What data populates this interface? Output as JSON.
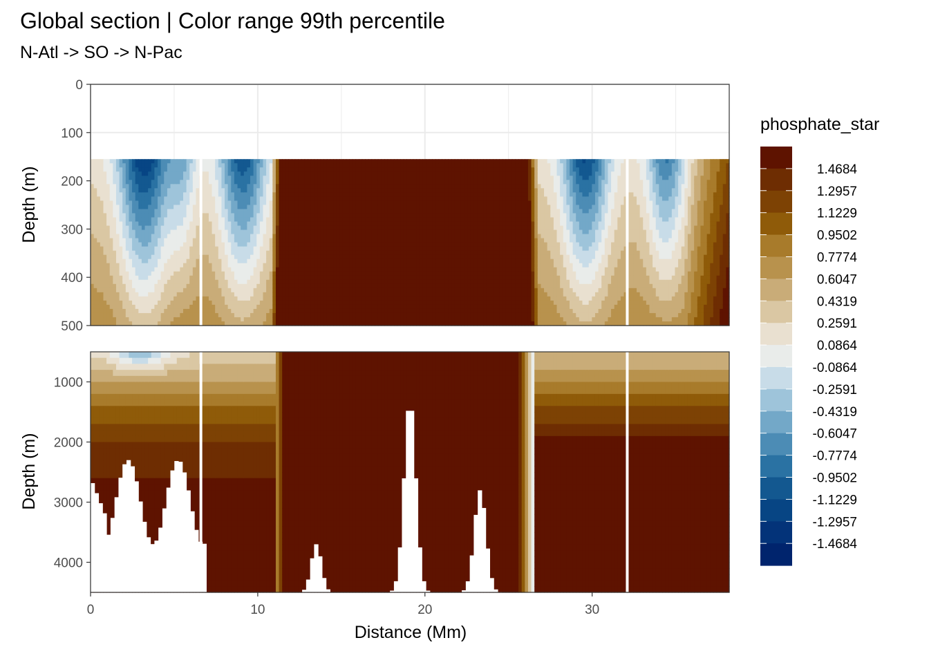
{
  "chart_data": {
    "type": "heatmap",
    "title": "Global section | Color range 99th percentile",
    "subtitle": "N-Atl -> SO -> N-Pac",
    "xlabel": "Distance (Mm)",
    "x_range": [
      0,
      38.2
    ],
    "x_ticks": [
      "0",
      "10",
      "20",
      "30"
    ],
    "grid": true,
    "legend_position": "right",
    "panels": [
      {
        "ylabel": "Depth (m)",
        "y_range": [
          0,
          500
        ],
        "y_ticks": [
          "0",
          "100",
          "200",
          "300",
          "400",
          "500"
        ],
        "data_top_depth": 155
      },
      {
        "ylabel": "Depth (m)",
        "y_range": [
          500,
          4500
        ],
        "y_ticks": [
          "1000",
          "2000",
          "3000",
          "4000"
        ]
      }
    ],
    "legend": {
      "title": "phosphate_star",
      "labels": [
        "1.4684",
        "1.2957",
        "1.1229",
        "0.9502",
        "0.7774",
        "0.6047",
        "0.4319",
        "0.2591",
        "0.0864",
        "-0.0864",
        "-0.2591",
        "-0.4319",
        "-0.6047",
        "-0.7774",
        "-0.9502",
        "-1.1229",
        "-1.2957",
        "-1.4684"
      ],
      "colors": [
        "#5e1300",
        "#6e2d02",
        "#7d4204",
        "#8f5b09",
        "#a87b2b",
        "#b8924d",
        "#c9ac78",
        "#dac7a3",
        "#e9e0d0",
        "#e9ecea",
        "#c8dce8",
        "#9ec4da",
        "#73a8c8",
        "#4c8cb5",
        "#2a72a3",
        "#135890",
        "#074584",
        "#033379",
        "#00246d"
      ]
    },
    "section_gaps_x": [
      6.6,
      32.1
    ]
  }
}
